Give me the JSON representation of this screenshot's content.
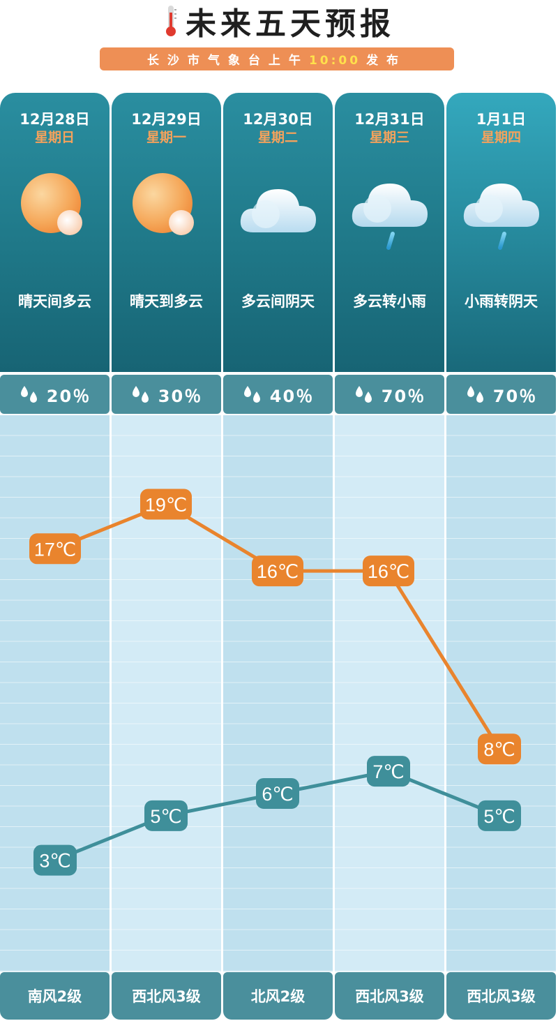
{
  "header": {
    "title": "未来五天预报",
    "subtitle_prefix": "长沙市气象台上午",
    "subtitle_time": "10:00",
    "subtitle_suffix": "发布",
    "accent_color": "#ee8f55"
  },
  "days": [
    {
      "date": "12月28日",
      "weekday": "星期日",
      "icon": "sun-cloud-icon",
      "desc": "晴天间多云",
      "rain": "20％",
      "wind": "南风2级"
    },
    {
      "date": "12月29日",
      "weekday": "星期一",
      "icon": "sun-cloud-icon",
      "desc": "晴天到多云",
      "rain": "30％",
      "wind": "西北风3级"
    },
    {
      "date": "12月30日",
      "weekday": "星期二",
      "icon": "cloud-icon",
      "desc": "多云间阴天",
      "rain": "40％",
      "wind": "北风2级"
    },
    {
      "date": "12月31日",
      "weekday": "星期三",
      "icon": "cloud-rain-icon",
      "desc": "多云转小雨",
      "rain": "70％",
      "wind": "西北风3级"
    },
    {
      "date": "1月1日",
      "weekday": "星期四",
      "icon": "cloud-rain-icon",
      "desc": "小雨转阴天",
      "rain": "70％",
      "wind": "西北风3级"
    }
  ],
  "chart_data": {
    "type": "line",
    "categories": [
      "12月28日",
      "12月29日",
      "12月30日",
      "12月31日",
      "1月1日"
    ],
    "series": [
      {
        "values": [
          17,
          19,
          16,
          16,
          8
        ],
        "labels": [
          "17℃",
          "19℃",
          "16℃",
          "16℃",
          "8℃"
        ],
        "color": "#e9842d"
      },
      {
        "values": [
          3,
          5,
          6,
          7,
          5
        ],
        "labels": [
          "3℃",
          "5℃",
          "6℃",
          "7℃",
          "5℃"
        ],
        "color": "#3f8f9a"
      }
    ],
    "ylim": [
      -2,
      23
    ],
    "grid": true
  }
}
